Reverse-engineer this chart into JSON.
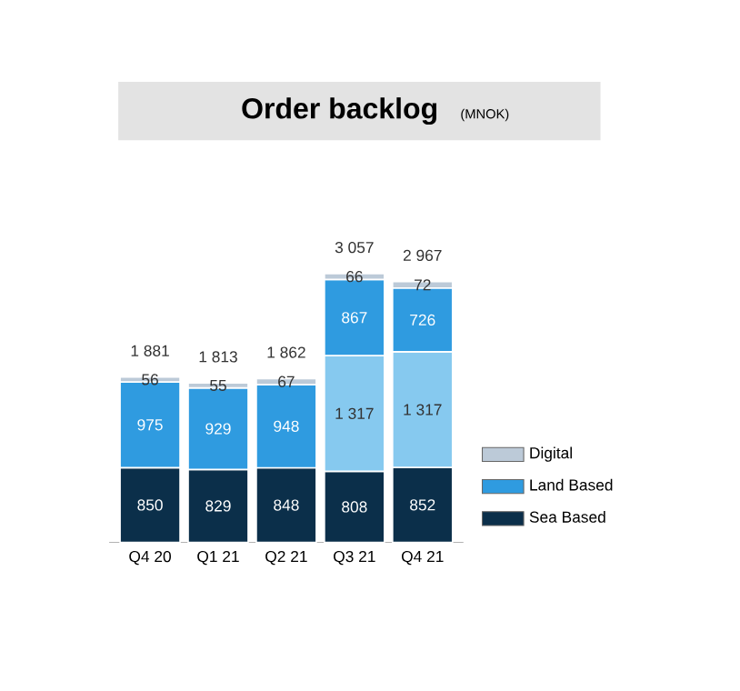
{
  "chart_data": {
    "type": "bar",
    "title": "Order backlog",
    "subtitle": "(MNOK)",
    "stacked": true,
    "categories": [
      "Q4 20",
      "Q1 21",
      "Q2 21",
      "Q3 21",
      "Q4 21"
    ],
    "series": [
      {
        "name": "Sea Based",
        "color": "#0b2f4a",
        "values": [
          850,
          829,
          848,
          808,
          852
        ],
        "value_labels": [
          "850",
          "829",
          "848",
          "808",
          "852"
        ]
      },
      {
        "color": "#86c9ef",
        "values": [
          null,
          null,
          null,
          1317,
          1317
        ],
        "value_labels": [
          null,
          null,
          null,
          "1 317",
          "1 317"
        ]
      },
      {
        "name": "Land Based",
        "color": "#2f9be0",
        "values": [
          975,
          929,
          948,
          867,
          726
        ],
        "value_labels": [
          "975",
          "929",
          "948",
          "867",
          "726"
        ]
      },
      {
        "name": "Digital",
        "color": "#bccad8",
        "values": [
          56,
          55,
          67,
          66,
          72
        ],
        "value_labels": [
          "56",
          "55",
          "67",
          "66",
          "72"
        ]
      }
    ],
    "totals": [
      "1 881",
      "1 813",
      "1 862",
      "3 057",
      "2 967"
    ],
    "legend": "right"
  }
}
